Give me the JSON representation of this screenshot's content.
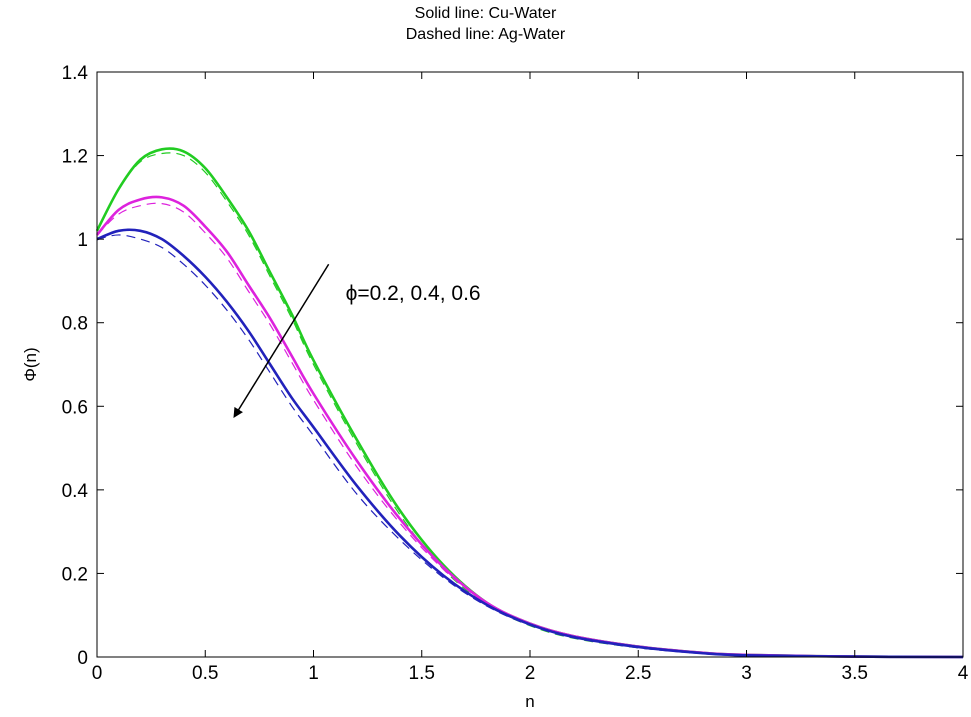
{
  "chart_data": {
    "type": "line",
    "title_lines": [
      "Solid line: Cu-Water",
      "Dashed line: Ag-Water"
    ],
    "xlabel": "n",
    "ylabel": "Φ(n)",
    "xlim": [
      0,
      4
    ],
    "ylim": [
      0,
      1.4
    ],
    "xticks": [
      "0",
      "0.5",
      "1",
      "1.5",
      "2",
      "2.5",
      "3",
      "3.5",
      "4"
    ],
    "yticks": [
      "0",
      "0.2",
      "0.4",
      "0.6",
      "0.8",
      "1",
      "1.2",
      "1.4"
    ],
    "grid": false,
    "annotation": {
      "text": "ϕ=0.2, 0.4, 0.6",
      "arrow_from": [
        1.07,
        0.94
      ],
      "arrow_to": [
        0.64,
        0.58
      ]
    },
    "x": [
      0,
      0.1,
      0.2,
      0.3,
      0.4,
      0.5,
      0.6,
      0.7,
      0.8,
      0.9,
      1.0,
      1.2,
      1.4,
      1.6,
      1.8,
      2.0,
      2.2,
      2.5,
      2.8,
      3.0,
      3.5,
      4.0
    ],
    "series": [
      {
        "color": "#22cc22",
        "dash": "solid",
        "values": [
          1.02,
          1.12,
          1.19,
          1.215,
          1.21,
          1.17,
          1.1,
          1.02,
          0.92,
          0.82,
          0.71,
          0.52,
          0.35,
          0.22,
          0.13,
          0.08,
          0.05,
          0.025,
          0.01,
          0.005,
          0.001,
          0.0
        ]
      },
      {
        "color": "#22cc22",
        "dash": "dashed",
        "values": [
          1.02,
          1.12,
          1.185,
          1.205,
          1.2,
          1.16,
          1.09,
          1.01,
          0.91,
          0.81,
          0.7,
          0.51,
          0.34,
          0.21,
          0.125,
          0.075,
          0.045,
          0.022,
          0.009,
          0.004,
          0.001,
          0.0
        ]
      },
      {
        "color": "#dd22dd",
        "dash": "solid",
        "values": [
          1.01,
          1.07,
          1.095,
          1.1,
          1.08,
          1.03,
          0.97,
          0.89,
          0.81,
          0.72,
          0.63,
          0.47,
          0.33,
          0.215,
          0.13,
          0.08,
          0.05,
          0.025,
          0.01,
          0.005,
          0.001,
          0.0
        ]
      },
      {
        "color": "#dd22dd",
        "dash": "dashed",
        "values": [
          1.01,
          1.06,
          1.08,
          1.085,
          1.065,
          1.015,
          0.955,
          0.875,
          0.795,
          0.705,
          0.615,
          0.455,
          0.32,
          0.21,
          0.128,
          0.078,
          0.048,
          0.024,
          0.009,
          0.004,
          0.001,
          0.0
        ]
      },
      {
        "color": "#2222bb",
        "dash": "solid",
        "values": [
          1.0,
          1.02,
          1.02,
          1.0,
          0.96,
          0.91,
          0.85,
          0.78,
          0.7,
          0.62,
          0.55,
          0.41,
          0.29,
          0.195,
          0.125,
          0.078,
          0.048,
          0.024,
          0.009,
          0.004,
          0.001,
          0.0
        ]
      },
      {
        "color": "#2222bb",
        "dash": "dashed",
        "values": [
          1.0,
          1.01,
          1.0,
          0.98,
          0.94,
          0.89,
          0.83,
          0.76,
          0.68,
          0.6,
          0.53,
          0.39,
          0.28,
          0.19,
          0.122,
          0.076,
          0.046,
          0.022,
          0.008,
          0.003,
          0.001,
          0.0
        ]
      }
    ]
  }
}
